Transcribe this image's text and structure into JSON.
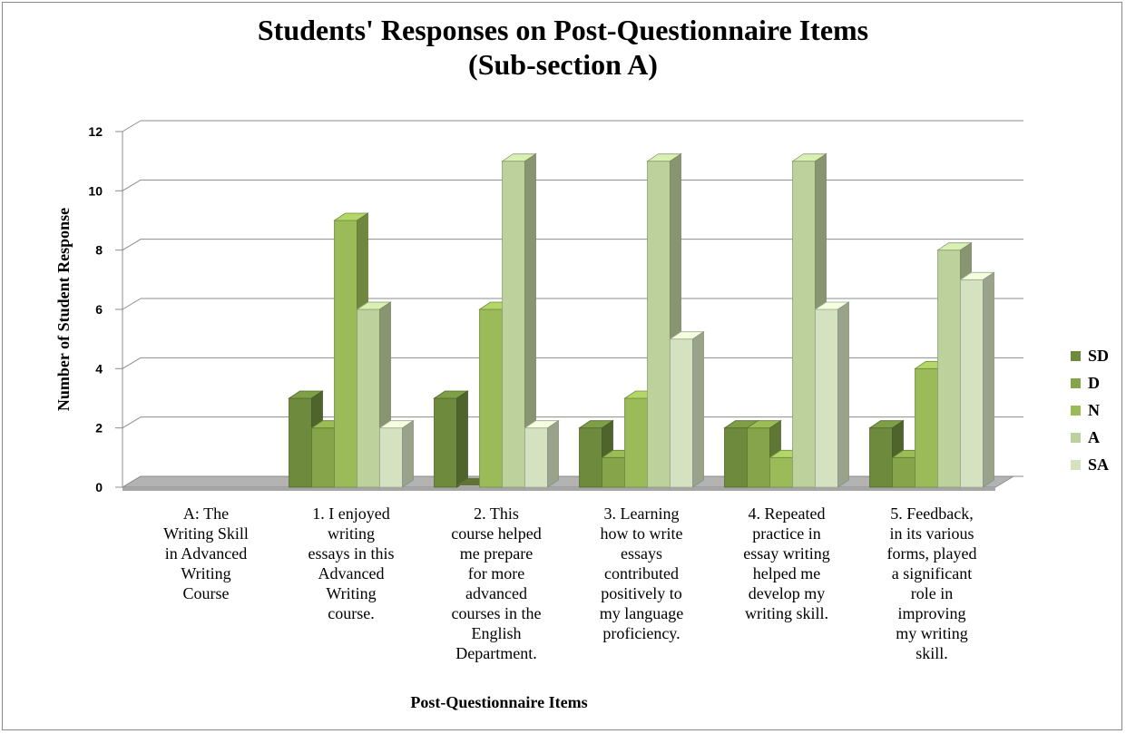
{
  "chart_data": {
    "type": "bar",
    "title": "Students' Responses on Post-Questionnaire Items",
    "subtitle": "(Sub-section A)",
    "xlabel": "Post-Questionnaire Items",
    "ylabel": "Number of Student Response",
    "ylim": [
      0,
      12
    ],
    "yticks": [
      "0",
      "2",
      "4",
      "6",
      "8",
      "10",
      "12"
    ],
    "grid": true,
    "legend_position": "right",
    "categories": [
      "A: The Writing Skill in Advanced Writing Course",
      "1. I enjoyed writing essays in this Advanced Writing course.",
      "2. This course helped me prepare for more advanced courses in the English Department.",
      "3. Learning how to write essays contributed positively to my language proficiency.",
      "4. Repeated practice in essay writing helped me develop my writing skill.",
      "5. Feedback, in its various forms, played a significant role in improving my writing skill."
    ],
    "category_lines": [
      [
        "A: The",
        "Writing Skill",
        "in Advanced",
        "Writing",
        "Course"
      ],
      [
        "1. I enjoyed",
        "writing",
        "essays in this",
        "Advanced",
        "Writing",
        "course."
      ],
      [
        "2. This",
        "course helped",
        "me prepare",
        "for more",
        "advanced",
        "courses in the",
        "English",
        "Department."
      ],
      [
        "3. Learning",
        "how to write",
        "essays",
        "contributed",
        "positively to",
        "my language",
        "proficiency."
      ],
      [
        "4. Repeated",
        "practice in",
        "essay writing",
        "helped me",
        "develop my",
        "writing skill."
      ],
      [
        "5. Feedback,",
        "in its various",
        "forms, played",
        "a significant",
        "role in",
        "improving",
        "my writing",
        "skill."
      ]
    ],
    "series": [
      {
        "name": "SD",
        "color": "#6e8a3d",
        "values": [
          0,
          3,
          3,
          2,
          2,
          2
        ]
      },
      {
        "name": "D",
        "color": "#86a44a",
        "values": [
          0,
          2,
          0,
          1,
          2,
          1
        ]
      },
      {
        "name": "N",
        "color": "#9bbb59",
        "values": [
          0,
          9,
          6,
          3,
          1,
          4
        ]
      },
      {
        "name": "A",
        "color": "#bcd19b",
        "values": [
          0,
          6,
          11,
          11,
          11,
          8
        ]
      },
      {
        "name": "SA",
        "color": "#d5e2c2",
        "values": [
          0,
          2,
          2,
          5,
          6,
          7
        ]
      }
    ]
  }
}
